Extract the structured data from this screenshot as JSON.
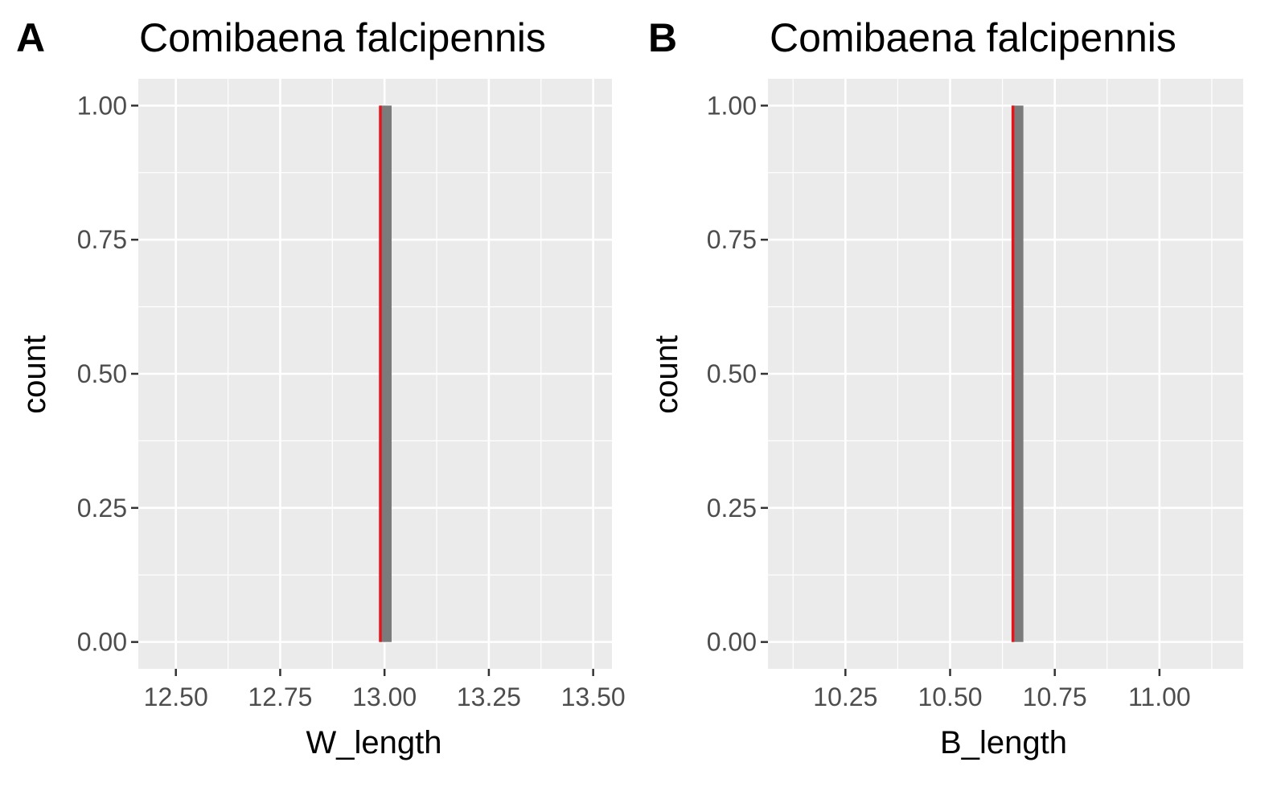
{
  "panels": [
    {
      "tag": "A",
      "title": "Comibaena falcipennis",
      "ylabel": "count",
      "xlabel": "W_length",
      "xticks": [
        "12.50",
        "12.75",
        "13.00",
        "13.25",
        "13.50"
      ],
      "yticks": [
        "0.00",
        "0.25",
        "0.50",
        "0.75",
        "1.00"
      ]
    },
    {
      "tag": "B",
      "title": "Comibaena falcipennis",
      "ylabel": "count",
      "xlabel": "B_length",
      "xticks": [
        "10.25",
        "10.50",
        "10.75",
        "11.00"
      ],
      "yticks": [
        "0.00",
        "0.25",
        "0.50",
        "0.75",
        "1.00"
      ]
    }
  ],
  "chart_data": [
    {
      "type": "bar",
      "title": "Comibaena falcipennis",
      "xlabel": "W_length",
      "ylabel": "count",
      "xlim": [
        12.41,
        13.545
      ],
      "ylim": [
        -0.05,
        1.05
      ],
      "x_ticks": [
        12.5,
        12.75,
        13.0,
        13.25,
        13.5
      ],
      "y_ticks": [
        0,
        0.25,
        0.5,
        0.75,
        1.0
      ],
      "bars": [
        {
          "x_start": 12.99,
          "x_end": 13.017,
          "count": 1
        }
      ],
      "vline": {
        "x": 12.99,
        "color": "#e8141c"
      },
      "bar_color": "#7b7b7b",
      "grid": true
    },
    {
      "type": "bar",
      "title": "Comibaena falcipennis",
      "xlabel": "B_length",
      "ylabel": "count",
      "xlim": [
        10.065,
        11.2
      ],
      "ylim": [
        -0.05,
        1.05
      ],
      "x_ticks": [
        10.25,
        10.5,
        10.75,
        11.0
      ],
      "y_ticks": [
        0,
        0.25,
        0.5,
        0.75,
        1.0
      ],
      "bars": [
        {
          "x_start": 10.648,
          "x_end": 10.675,
          "count": 1
        }
      ],
      "vline": {
        "x": 10.65,
        "color": "#e8141c"
      },
      "bar_color": "#7b7b7b",
      "grid": true
    }
  ]
}
